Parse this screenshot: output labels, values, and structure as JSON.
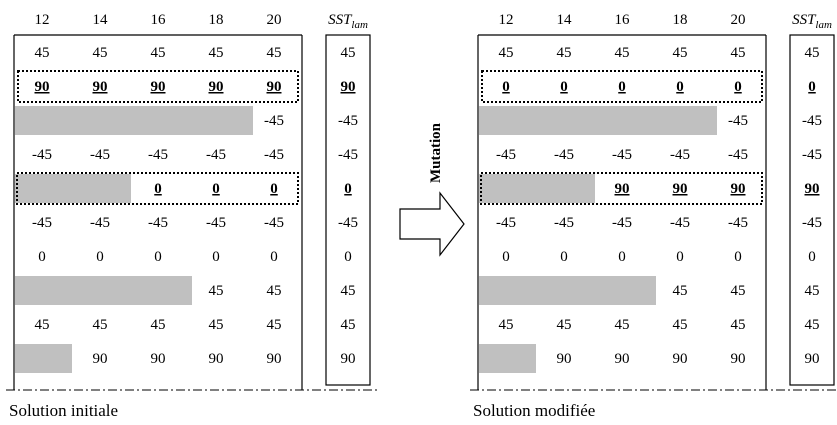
{
  "left_panel": {
    "columns": [
      "12",
      "14",
      "16",
      "18",
      "20"
    ],
    "sst_header": "SST",
    "sst_sub": "lam",
    "rows": [
      {
        "cells": [
          "45",
          "45",
          "45",
          "45",
          "45"
        ],
        "sst": "45",
        "grey": 0
      },
      {
        "cells": [
          "90",
          "90",
          "90",
          "90",
          "90"
        ],
        "sst": "90",
        "grey": 0,
        "highlight": true
      },
      {
        "cells": [
          "",
          "",
          "",
          "",
          "-45"
        ],
        "sst": "-45",
        "grey": 4
      },
      {
        "cells": [
          "-45",
          "-45",
          "-45",
          "-45",
          "-45"
        ],
        "sst": "-45",
        "grey": 0
      },
      {
        "cells": [
          "",
          "",
          "0",
          "0",
          "0"
        ],
        "sst": "0",
        "grey": 2,
        "highlight": true
      },
      {
        "cells": [
          "-45",
          "-45",
          "-45",
          "-45",
          "-45"
        ],
        "sst": "-45",
        "grey": 0
      },
      {
        "cells": [
          "0",
          "0",
          "0",
          "0",
          "0"
        ],
        "sst": "0",
        "grey": 0
      },
      {
        "cells": [
          "",
          "",
          "",
          "45",
          "45"
        ],
        "sst": "45",
        "grey": 3
      },
      {
        "cells": [
          "45",
          "45",
          "45",
          "45",
          "45"
        ],
        "sst": "45",
        "grey": 0
      },
      {
        "cells": [
          "",
          "90",
          "90",
          "90",
          "90"
        ],
        "sst": "90",
        "grey": 1
      }
    ],
    "caption": "Solution initiale"
  },
  "right_panel": {
    "columns": [
      "12",
      "14",
      "16",
      "18",
      "20"
    ],
    "sst_header": "SST",
    "sst_sub": "lam",
    "rows": [
      {
        "cells": [
          "45",
          "45",
          "45",
          "45",
          "45"
        ],
        "sst": "45",
        "grey": 0
      },
      {
        "cells": [
          "0",
          "0",
          "0",
          "0",
          "0"
        ],
        "sst": "0",
        "grey": 0,
        "highlight": true
      },
      {
        "cells": [
          "",
          "",
          "",
          "",
          "-45"
        ],
        "sst": "-45",
        "grey": 4
      },
      {
        "cells": [
          "-45",
          "-45",
          "-45",
          "-45",
          "-45"
        ],
        "sst": "-45",
        "grey": 0
      },
      {
        "cells": [
          "",
          "",
          "90",
          "90",
          "90"
        ],
        "sst": "90",
        "grey": 2,
        "highlight": true
      },
      {
        "cells": [
          "-45",
          "-45",
          "-45",
          "-45",
          "-45"
        ],
        "sst": "-45",
        "grey": 0
      },
      {
        "cells": [
          "0",
          "0",
          "0",
          "0",
          "0"
        ],
        "sst": "0",
        "grey": 0
      },
      {
        "cells": [
          "",
          "",
          "",
          "45",
          "45"
        ],
        "sst": "45",
        "grey": 3
      },
      {
        "cells": [
          "45",
          "45",
          "45",
          "45",
          "45"
        ],
        "sst": "45",
        "grey": 0
      },
      {
        "cells": [
          "",
          "90",
          "90",
          "90",
          "90"
        ],
        "sst": "90",
        "grey": 1
      }
    ],
    "caption": "Solution modifiée"
  },
  "arrow_label": "Mutation",
  "colors": {
    "grey_block": "#c0c0c0",
    "line": "#000000"
  }
}
